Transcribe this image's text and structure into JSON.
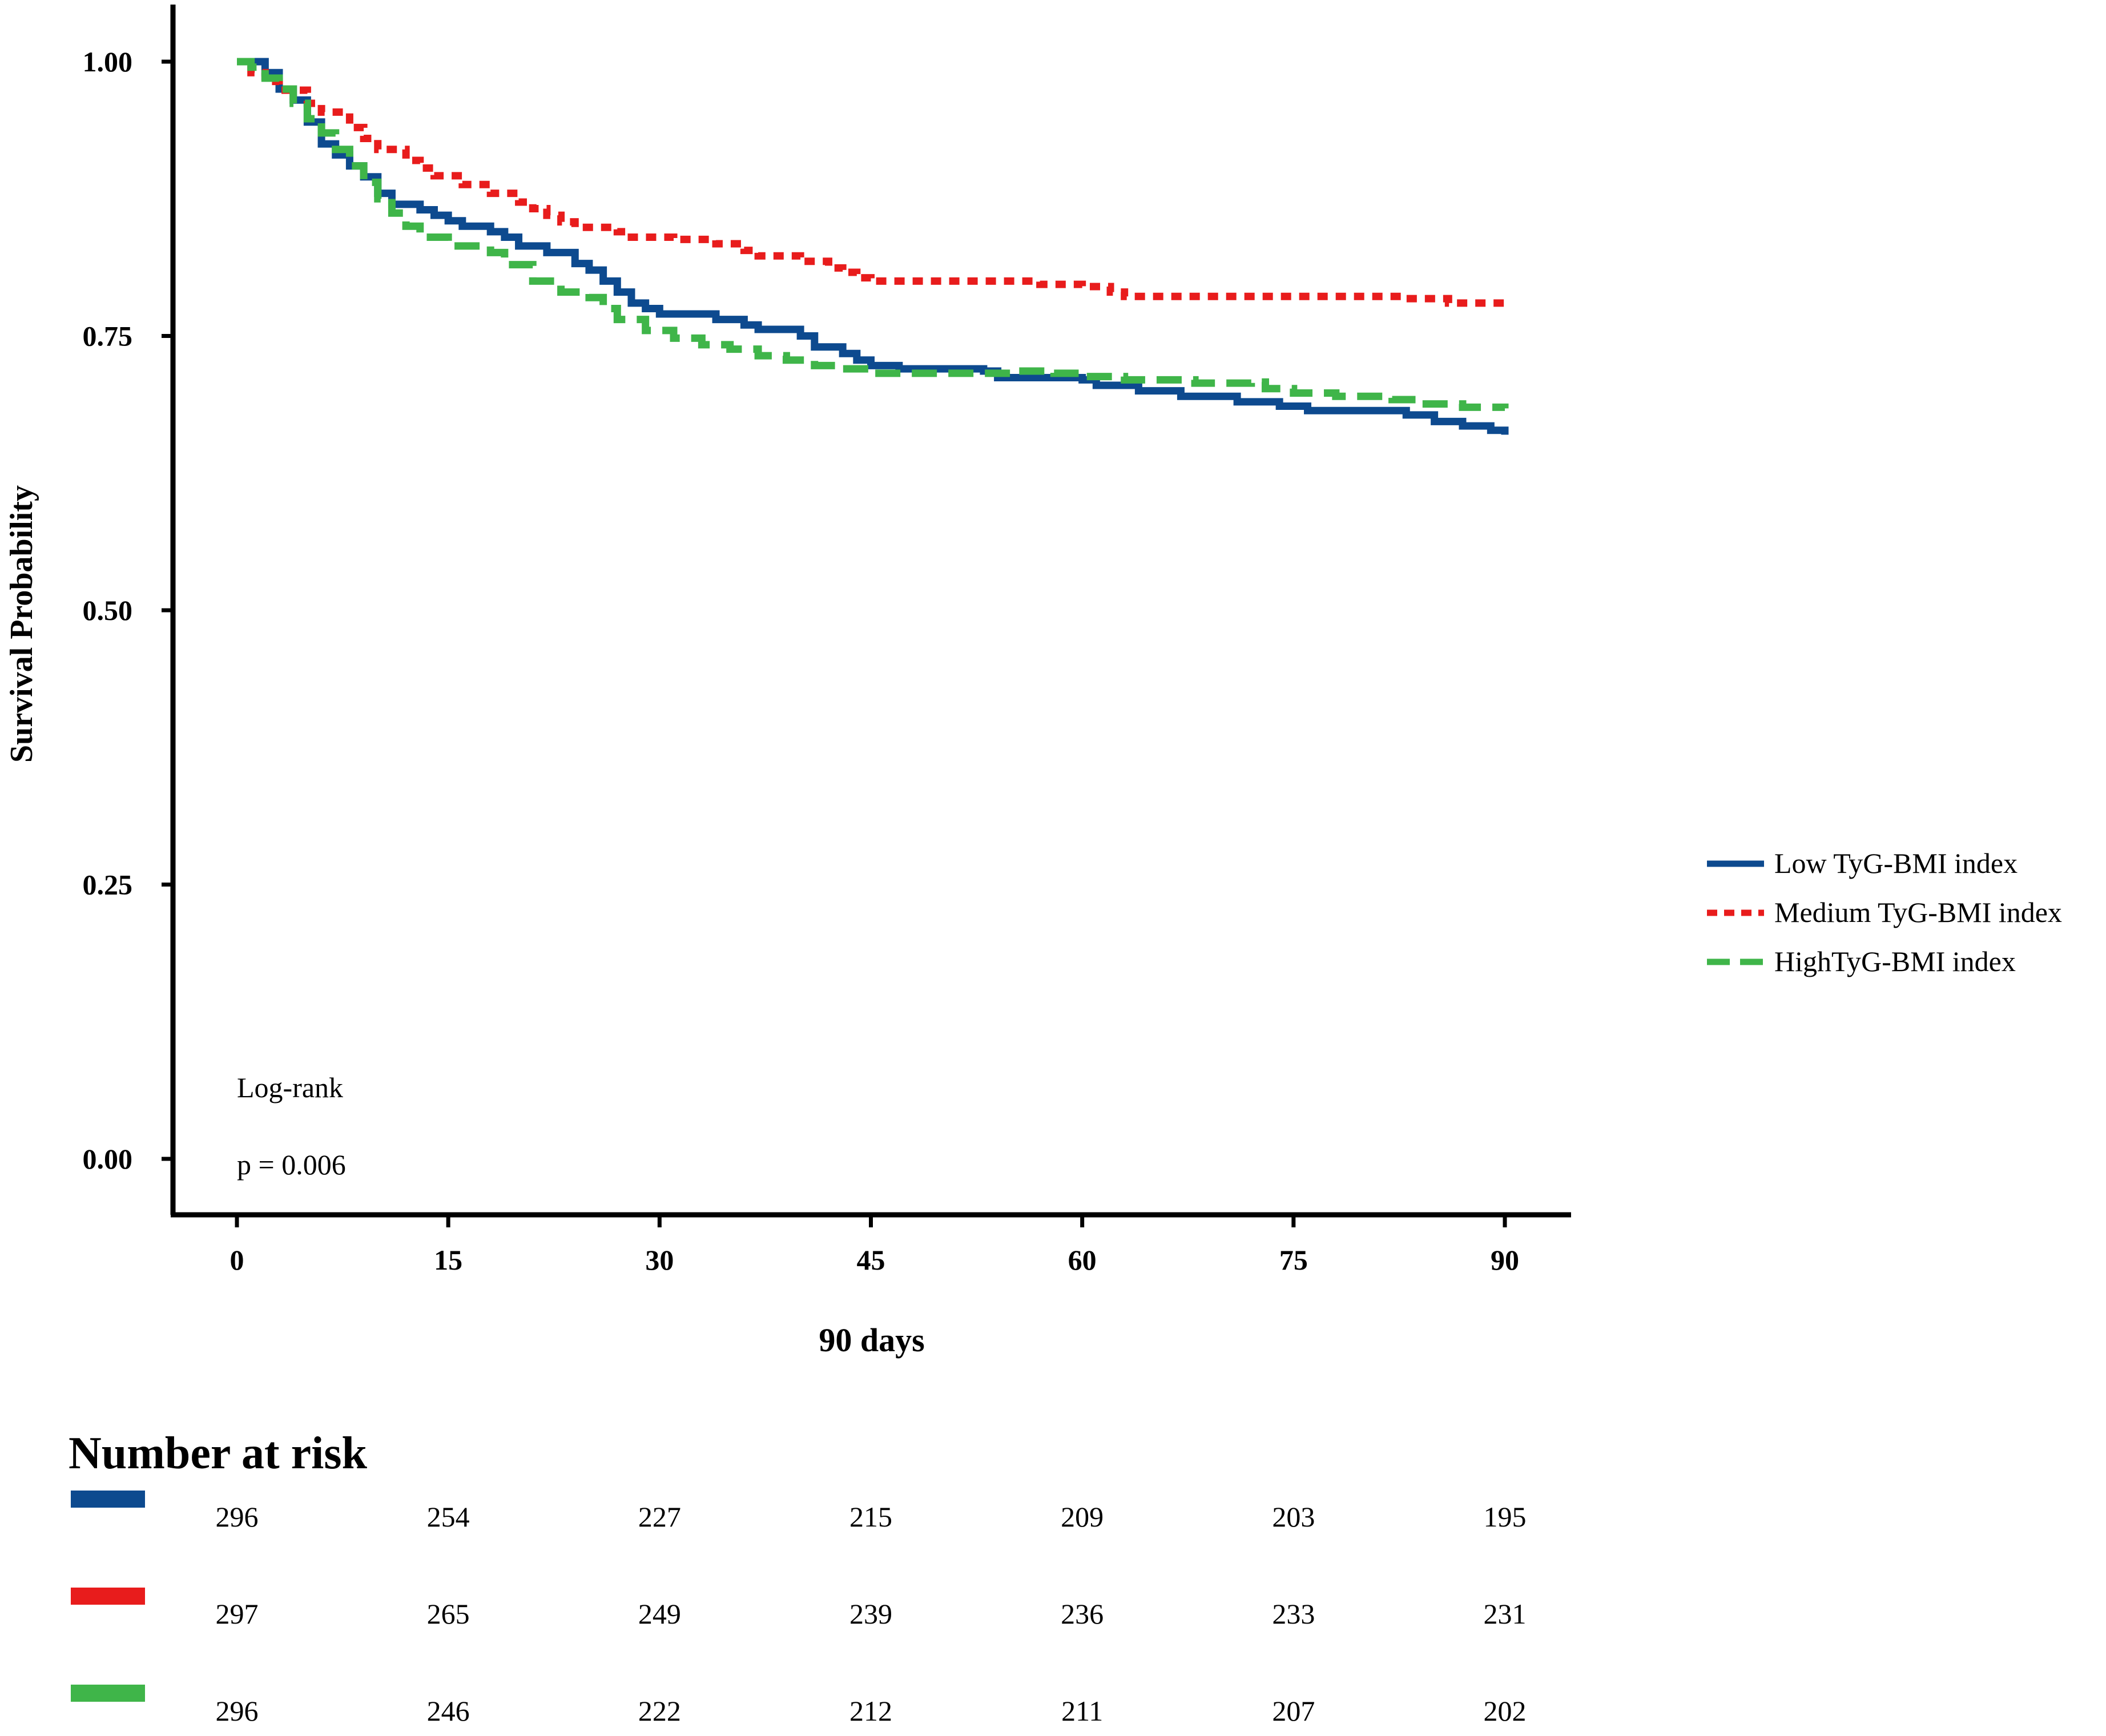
{
  "chart_data": {
    "type": "line",
    "subtype": "kaplan-meier",
    "title": "",
    "xlabel": "90 days",
    "ylabel": "Survival Probability",
    "xlim": [
      0,
      90
    ],
    "ylim": [
      0,
      1
    ],
    "x_ticks": [
      0,
      15,
      30,
      45,
      60,
      75,
      90
    ],
    "x_tick_labels": [
      "0",
      "15",
      "30",
      "45",
      "60",
      "75",
      "90"
    ],
    "y_ticks": [
      0,
      0.25,
      0.5,
      0.75,
      1
    ],
    "y_tick_labels": [
      "0.00",
      "0.25",
      "0.50",
      "0.75",
      "1.00"
    ],
    "grid": false,
    "legend_position": "right",
    "series": [
      {
        "name": "Low TyG-BMI index",
        "color": "#0d4a8f",
        "dash": "solid",
        "points": [
          [
            0,
            1.0
          ],
          [
            1,
            1.0
          ],
          [
            2,
            0.99
          ],
          [
            3,
            0.975
          ],
          [
            4,
            0.965
          ],
          [
            5,
            0.945
          ],
          [
            6,
            0.925
          ],
          [
            7,
            0.915
          ],
          [
            8,
            0.905
          ],
          [
            9,
            0.895
          ],
          [
            10,
            0.88
          ],
          [
            11,
            0.87
          ],
          [
            13,
            0.865
          ],
          [
            14,
            0.86
          ],
          [
            15,
            0.855
          ],
          [
            16,
            0.85
          ],
          [
            18,
            0.845
          ],
          [
            19,
            0.84
          ],
          [
            20,
            0.832
          ],
          [
            22,
            0.826
          ],
          [
            24,
            0.816
          ],
          [
            25,
            0.81
          ],
          [
            26,
            0.8
          ],
          [
            27,
            0.79
          ],
          [
            28,
            0.78
          ],
          [
            29,
            0.775
          ],
          [
            30,
            0.77
          ],
          [
            34,
            0.765
          ],
          [
            36,
            0.76
          ],
          [
            37,
            0.756
          ],
          [
            40,
            0.75
          ],
          [
            41,
            0.74
          ],
          [
            43,
            0.734
          ],
          [
            44,
            0.728
          ],
          [
            45,
            0.723
          ],
          [
            47,
            0.72
          ],
          [
            53,
            0.718
          ],
          [
            54,
            0.712
          ],
          [
            60,
            0.71
          ],
          [
            61,
            0.705
          ],
          [
            64,
            0.7
          ],
          [
            67,
            0.695
          ],
          [
            71,
            0.69
          ],
          [
            74,
            0.686
          ],
          [
            76,
            0.682
          ],
          [
            83,
            0.678
          ],
          [
            85,
            0.672
          ],
          [
            87,
            0.668
          ],
          [
            89,
            0.664
          ],
          [
            90,
            0.66
          ]
        ]
      },
      {
        "name": "Medium TyG-BMI index",
        "color": "#e81c1c",
        "dash": "dotted",
        "points": [
          [
            0,
            1.0
          ],
          [
            1,
            0.99
          ],
          [
            2,
            0.982
          ],
          [
            3,
            0.974
          ],
          [
            5,
            0.962
          ],
          [
            6,
            0.954
          ],
          [
            8,
            0.94
          ],
          [
            9,
            0.93
          ],
          [
            10,
            0.92
          ],
          [
            12,
            0.91
          ],
          [
            13,
            0.903
          ],
          [
            14,
            0.896
          ],
          [
            16,
            0.888
          ],
          [
            18,
            0.88
          ],
          [
            20,
            0.872
          ],
          [
            21,
            0.866
          ],
          [
            22,
            0.86
          ],
          [
            23,
            0.854
          ],
          [
            24,
            0.849
          ],
          [
            27,
            0.845
          ],
          [
            28,
            0.84
          ],
          [
            31,
            0.838
          ],
          [
            34,
            0.834
          ],
          [
            36,
            0.828
          ],
          [
            37,
            0.823
          ],
          [
            40,
            0.818
          ],
          [
            42,
            0.812
          ],
          [
            43,
            0.808
          ],
          [
            44,
            0.803
          ],
          [
            45,
            0.8
          ],
          [
            57,
            0.797
          ],
          [
            60,
            0.795
          ],
          [
            62,
            0.79
          ],
          [
            63,
            0.786
          ],
          [
            83,
            0.784
          ],
          [
            86,
            0.78
          ],
          [
            90,
            0.778
          ]
        ]
      },
      {
        "name": "HighTyG-BMI index",
        "color": "#3fb549",
        "dash": "dashed",
        "points": [
          [
            0,
            1.0
          ],
          [
            1,
            0.995
          ],
          [
            2,
            0.985
          ],
          [
            3,
            0.975
          ],
          [
            4,
            0.962
          ],
          [
            5,
            0.948
          ],
          [
            6,
            0.935
          ],
          [
            7,
            0.92
          ],
          [
            8,
            0.905
          ],
          [
            9,
            0.89
          ],
          [
            10,
            0.875
          ],
          [
            11,
            0.862
          ],
          [
            12,
            0.85
          ],
          [
            13,
            0.84
          ],
          [
            15,
            0.832
          ],
          [
            18,
            0.826
          ],
          [
            19,
            0.815
          ],
          [
            21,
            0.8
          ],
          [
            23,
            0.79
          ],
          [
            25,
            0.785
          ],
          [
            26,
            0.775
          ],
          [
            27,
            0.765
          ],
          [
            29,
            0.755
          ],
          [
            31,
            0.748
          ],
          [
            33,
            0.742
          ],
          [
            35,
            0.738
          ],
          [
            37,
            0.732
          ],
          [
            39,
            0.728
          ],
          [
            41,
            0.723
          ],
          [
            43,
            0.72
          ],
          [
            45,
            0.716
          ],
          [
            55,
            0.718
          ],
          [
            58,
            0.716
          ],
          [
            60,
            0.713
          ],
          [
            63,
            0.71
          ],
          [
            68,
            0.707
          ],
          [
            72,
            0.708
          ],
          [
            73,
            0.702
          ],
          [
            75,
            0.698
          ],
          [
            78,
            0.695
          ],
          [
            82,
            0.692
          ],
          [
            84,
            0.688
          ],
          [
            87,
            0.685
          ],
          [
            90,
            0.684
          ]
        ]
      }
    ],
    "annotations": [
      "Log-rank",
      "p = 0.006"
    ],
    "risk_table": {
      "title": "Number at risk",
      "times": [
        0,
        15,
        30,
        45,
        60,
        75,
        90
      ],
      "rows": [
        {
          "color": "#0d4a8f",
          "values": [
            "296",
            "254",
            "227",
            "215",
            "209",
            "203",
            "195"
          ]
        },
        {
          "color": "#e81c1c",
          "values": [
            "297",
            "265",
            "249",
            "239",
            "236",
            "233",
            "231"
          ]
        },
        {
          "color": "#3fb549",
          "values": [
            "296",
            "246",
            "222",
            "212",
            "211",
            "207",
            "202"
          ]
        }
      ]
    }
  }
}
